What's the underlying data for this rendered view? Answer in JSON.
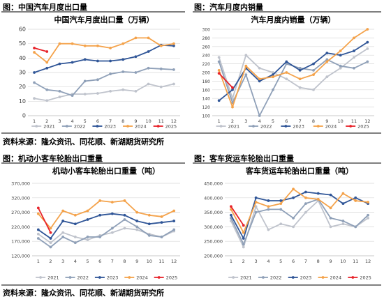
{
  "panels": [
    {
      "fig_label": "图：中国汽车月度出口量"
    },
    {
      "fig_label": "图：汽车月度内销量"
    },
    {
      "fig_label": "图：机动小客车轮胎出口重量"
    },
    {
      "fig_label": "图：客车货运车轮胎出口重量"
    }
  ],
  "sources": {
    "top": "资料来源：隆众资讯、同花顺、新湖期货研究所",
    "bottom": "资料来源：隆众资讯、同花顺、新湖期货研究所"
  },
  "series_styles": [
    {
      "name": "2021",
      "color": "#bfc3cc"
    },
    {
      "name": "2022",
      "color": "#8fa0b8"
    },
    {
      "name": "2023",
      "color": "#2f5597"
    },
    {
      "name": "2024",
      "color": "#f4a24a"
    },
    {
      "name": "2025",
      "color": "#e8232a"
    }
  ],
  "chart_data": [
    {
      "type": "line",
      "title": "中国汽车月度出口量（万辆）",
      "categories": [
        "1",
        "2",
        "3",
        "4",
        "5",
        "6",
        "7",
        "8",
        "9",
        "10",
        "11",
        "12"
      ],
      "ylim": [
        0,
        60
      ],
      "yticks": [
        "0",
        "10",
        "20",
        "30",
        "40",
        "50",
        "60"
      ],
      "grid": true,
      "legend": "bottom",
      "series": [
        {
          "name": "2021",
          "values": [
            12,
            10.5,
            13,
            15,
            15,
            15.5,
            17,
            18,
            17,
            22,
            20,
            22
          ]
        },
        {
          "name": "2022",
          "values": [
            23,
            18,
            17,
            14,
            24,
            25,
            29,
            30.5,
            30,
            33,
            32.5,
            32
          ]
        },
        {
          "name": "2023",
          "values": [
            30,
            33,
            36,
            37,
            39,
            38,
            38,
            39,
            41,
            44.5,
            49,
            48.5
          ]
        },
        {
          "name": "2024",
          "values": [
            44,
            37,
            50,
            50,
            48.5,
            48.5,
            47,
            50,
            54,
            54,
            48.5,
            50
          ]
        },
        {
          "name": "2025",
          "values": [
            47,
            44.5,
            null,
            null,
            null,
            null,
            null,
            null,
            null,
            null,
            null,
            null
          ]
        }
      ]
    },
    {
      "type": "line",
      "title": "汽车月度内销量（万辆）",
      "categories": [
        "1",
        "2",
        "3",
        "4",
        "5",
        "6",
        "7",
        "8",
        "9",
        "10",
        "11",
        "12"
      ],
      "ylim": [
        100,
        300
      ],
      "yticks": [
        "100",
        "120",
        "140",
        "160",
        "180",
        "200",
        "220",
        "240",
        "260",
        "280",
        "300"
      ],
      "grid": true,
      "legend": "bottom",
      "series": [
        {
          "name": "2021",
          "values": [
            235,
            140,
            240,
            210,
            200,
            185,
            165,
            160,
            190,
            210,
            235,
            255
          ]
        },
        {
          "name": "2022",
          "values": [
            225,
            130,
            195,
            100,
            160,
            220,
            210,
            205,
            230,
            215,
            210,
            225
          ]
        },
        {
          "name": "2023",
          "values": [
            135,
            160,
            210,
            180,
            195,
            225,
            205,
            220,
            245,
            240,
            250,
            270
          ]
        },
        {
          "name": "2024",
          "values": [
            205,
            120,
            215,
            185,
            190,
            200,
            185,
            195,
            225,
            250,
            280,
            300
          ]
        },
        {
          "name": "2025",
          "values": [
            198,
            165,
            null,
            null,
            null,
            null,
            null,
            null,
            null,
            null,
            null,
            null
          ]
        }
      ]
    },
    {
      "type": "line",
      "title": "机动小客车轮胎出口重量（吨）",
      "categories": [
        "1",
        "2",
        "3",
        "4",
        "5",
        "6",
        "7",
        "8",
        "9",
        "10",
        "11",
        "12"
      ],
      "ylim": [
        120000,
        370000
      ],
      "yticks": [
        "120,000",
        "170,000",
        "220,000",
        "270,000",
        "320,000",
        "370,000"
      ],
      "grid": true,
      "legend": "bottom",
      "series": [
        {
          "name": "2021",
          "values": [
            195000,
            165000,
            200000,
            185000,
            175000,
            190000,
            200000,
            215000,
            210000,
            195000,
            185000,
            205000
          ]
        },
        {
          "name": "2022",
          "values": [
            180000,
            150000,
            185000,
            165000,
            185000,
            185000,
            215000,
            245000,
            220000,
            190000,
            185000,
            210000
          ]
        },
        {
          "name": "2023",
          "values": [
            210000,
            180000,
            240000,
            230000,
            245000,
            260000,
            265000,
            260000,
            240000,
            230000,
            235000,
            240000
          ]
        },
        {
          "name": "2024",
          "values": [
            265000,
            215000,
            275000,
            260000,
            275000,
            310000,
            305000,
            310000,
            270000,
            260000,
            255000,
            275000
          ]
        },
        {
          "name": "2025",
          "values": [
            285000,
            200000,
            null,
            null,
            null,
            null,
            null,
            null,
            null,
            null,
            null,
            null
          ]
        }
      ]
    },
    {
      "type": "line",
      "title": "客车货运车轮胎出口重量（吨）",
      "categories": [
        "1",
        "2",
        "3",
        "4",
        "5",
        "6",
        "7",
        "8",
        "9",
        "10",
        "11",
        "12"
      ],
      "ylim": [
        200000,
        450000
      ],
      "yticks": [
        "200,000",
        "250,000",
        "300,000",
        "350,000",
        "400,000",
        "450,000"
      ],
      "grid": true,
      "legend": "bottom",
      "series": [
        {
          "name": "2021",
          "values": [
            320000,
            230000,
            370000,
            290000,
            310000,
            300000,
            350000,
            390000,
            300000,
            310000,
            300000,
            330000
          ]
        },
        {
          "name": "2022",
          "values": [
            330000,
            240000,
            350000,
            360000,
            360000,
            330000,
            380000,
            395000,
            330000,
            320000,
            300000,
            340000
          ]
        },
        {
          "name": "2023",
          "values": [
            340000,
            260000,
            400000,
            390000,
            390000,
            400000,
            420000,
            415000,
            410000,
            380000,
            400000,
            380000
          ]
        },
        {
          "name": "2024",
          "values": [
            360000,
            280000,
            385000,
            370000,
            380000,
            430000,
            400000,
            395000,
            365000,
            415000,
            390000,
            385000
          ]
        },
        {
          "name": "2025",
          "values": [
            370000,
            305000,
            null,
            null,
            null,
            null,
            null,
            null,
            null,
            null,
            null,
            null
          ]
        }
      ]
    }
  ]
}
